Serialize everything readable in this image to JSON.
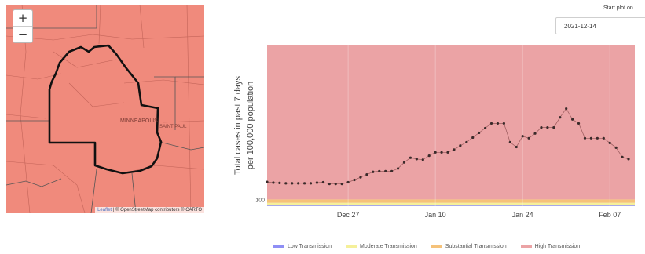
{
  "map": {
    "zoom_in": "+",
    "zoom_out": "−",
    "city_label_1": "MINNEAPOLIS",
    "city_label_2": "SAINT PAUL",
    "attribution_leaflet": "Leaflet",
    "attribution_rest": "| © OpenStreetMap contributors © CARTO",
    "fill_color": "#f08a7c"
  },
  "controls": {
    "start_label": "Start plot on",
    "start_date": "2021-12-14"
  },
  "chart_data": {
    "type": "line",
    "ylabel_line1": "Total cases in past 7 days",
    "ylabel_line2": "per 100,000 population",
    "x_ticks": [
      "Dec 27",
      "Jan 10",
      "Jan 24",
      "Feb 07"
    ],
    "y_ticks_visible": [
      "100"
    ],
    "ylim": [
      0,
      2400
    ],
    "bands": [
      {
        "name": "Low Transmission",
        "from": 0,
        "to": 10,
        "color": "#8f8ff5"
      },
      {
        "name": "Moderate Transmission",
        "from": 10,
        "to": 50,
        "color": "#f5f09a"
      },
      {
        "name": "Substantial Transmission",
        "from": 50,
        "to": 100,
        "color": "#f5c27a"
      },
      {
        "name": "High Transmission",
        "from": 100,
        "to": 2400,
        "color": "#eba3a5"
      }
    ],
    "x": [
      "2021-12-14",
      "2021-12-15",
      "2021-12-16",
      "2021-12-17",
      "2021-12-18",
      "2021-12-19",
      "2021-12-20",
      "2021-12-21",
      "2021-12-22",
      "2021-12-23",
      "2021-12-24",
      "2021-12-25",
      "2021-12-26",
      "2021-12-27",
      "2021-12-28",
      "2021-12-29",
      "2021-12-30",
      "2021-12-31",
      "2022-01-01",
      "2022-01-02",
      "2022-01-03",
      "2022-01-04",
      "2022-01-05",
      "2022-01-06",
      "2022-01-07",
      "2022-01-08",
      "2022-01-09",
      "2022-01-10",
      "2022-01-11",
      "2022-01-12",
      "2022-01-13",
      "2022-01-14",
      "2022-01-15",
      "2022-01-16",
      "2022-01-17",
      "2022-01-18",
      "2022-01-19",
      "2022-01-20",
      "2022-01-21",
      "2022-01-22",
      "2022-01-23",
      "2022-01-24",
      "2022-01-25",
      "2022-01-26",
      "2022-01-27",
      "2022-01-28",
      "2022-01-29",
      "2022-01-30",
      "2022-01-31",
      "2022-02-01",
      "2022-02-02",
      "2022-02-03",
      "2022-02-04",
      "2022-02-05",
      "2022-02-06",
      "2022-02-07",
      "2022-02-08",
      "2022-02-09",
      "2022-02-10"
    ],
    "y": [
      360,
      350,
      345,
      340,
      340,
      340,
      340,
      340,
      350,
      355,
      330,
      330,
      330,
      355,
      390,
      430,
      470,
      510,
      520,
      520,
      520,
      560,
      650,
      720,
      700,
      690,
      750,
      800,
      800,
      800,
      840,
      900,
      950,
      1020,
      1090,
      1160,
      1230,
      1230,
      1230,
      950,
      880,
      1040,
      1010,
      1080,
      1170,
      1170,
      1170,
      1320,
      1450,
      1290,
      1230,
      1010,
      1010,
      1010,
      1010,
      940,
      870,
      730,
      700
    ]
  }
}
